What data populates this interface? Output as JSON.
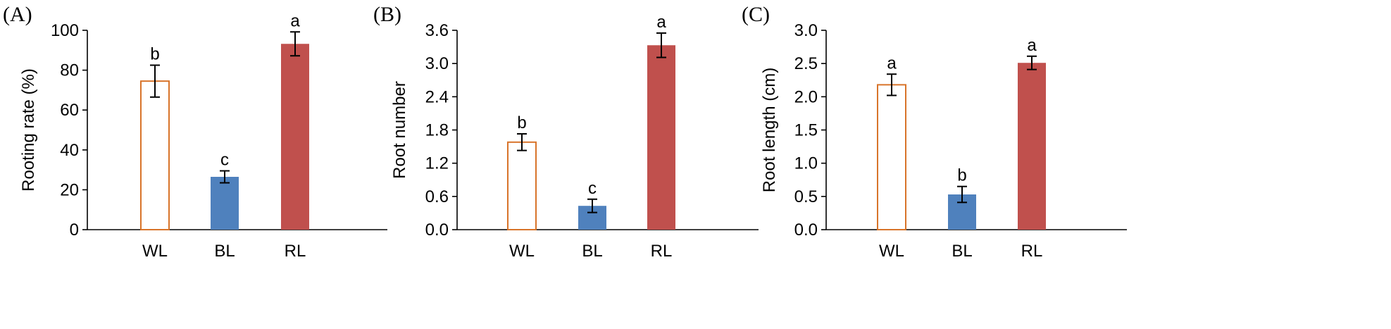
{
  "chart_data": [
    {
      "type": "bar",
      "panel": "(A)",
      "ylabel": "Rooting rate (%)",
      "ylim": [
        0,
        100
      ],
      "yticks": [
        "0",
        "20",
        "40",
        "60",
        "80",
        "100"
      ],
      "categories": [
        "WL",
        "BL",
        "RL"
      ],
      "values": [
        74.5,
        26.5,
        93.2
      ],
      "errors": [
        8.0,
        3.0,
        6.0
      ],
      "significance": [
        "b",
        "c",
        "a"
      ]
    },
    {
      "type": "bar",
      "panel": "(B)",
      "ylabel": "Root number",
      "ylim": [
        0,
        3.6
      ],
      "yticks": [
        "0.0",
        "0.6",
        "1.2",
        "1.8",
        "2.4",
        "3.0",
        "3.6"
      ],
      "categories": [
        "WL",
        "BL",
        "RL"
      ],
      "values": [
        1.58,
        0.43,
        3.33
      ],
      "errors": [
        0.15,
        0.12,
        0.22
      ],
      "significance": [
        "b",
        "c",
        "a"
      ]
    },
    {
      "type": "bar",
      "panel": "(C)",
      "ylabel": "Root length (cm)",
      "ylim": [
        0,
        3.0
      ],
      "yticks": [
        "0.0",
        "0.5",
        "1.0",
        "1.5",
        "2.0",
        "2.5",
        "3.0"
      ],
      "categories": [
        "WL",
        "BL",
        "RL"
      ],
      "values": [
        2.18,
        0.53,
        2.51
      ],
      "errors": [
        0.16,
        0.12,
        0.1
      ],
      "significance": [
        "a",
        "b",
        "a"
      ]
    }
  ],
  "colors": {
    "WL_edge": "#d8742a",
    "WL_fill": "#ffffff",
    "BL": "#4f81bd",
    "RL": "#c0504d"
  }
}
